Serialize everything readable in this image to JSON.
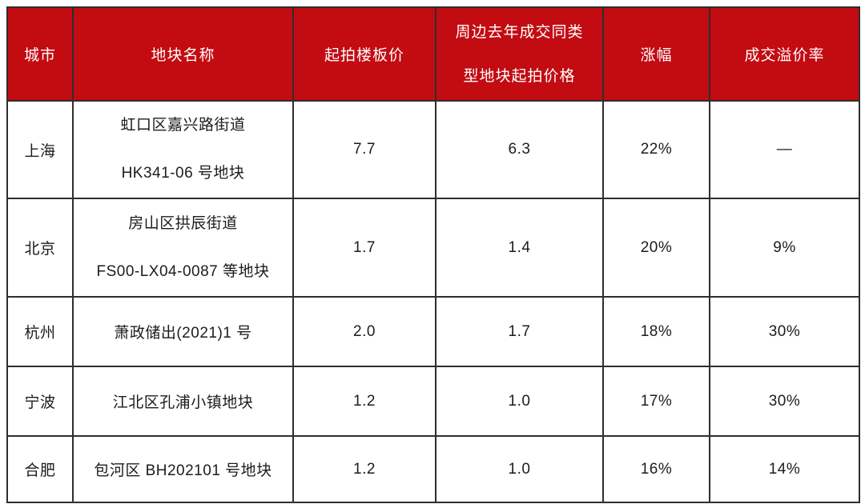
{
  "colors": {
    "header_bg": "#c30b12",
    "header_text": "#ffffff",
    "body_text": "#1c1c1c",
    "border": "#2e2e2e"
  },
  "table": {
    "headers": [
      {
        "lines": [
          "城市"
        ]
      },
      {
        "lines": [
          "地块名称"
        ]
      },
      {
        "lines": [
          "起拍楼板价"
        ]
      },
      {
        "lines": [
          "周边去年成交同类",
          "型地块起拍价格"
        ]
      },
      {
        "lines": [
          "涨幅"
        ]
      },
      {
        "lines": [
          "成交溢价率"
        ]
      }
    ],
    "rows": [
      {
        "city": "上海",
        "name": [
          "虹口区嘉兴路街道",
          "HK341-06 号地块"
        ],
        "start_price": "7.7",
        "nearby_price": "6.3",
        "increase": "22%",
        "premium": "—"
      },
      {
        "city": "北京",
        "name": [
          "房山区拱辰街道",
          "FS00-LX04-0087 等地块"
        ],
        "start_price": "1.7",
        "nearby_price": "1.4",
        "increase": "20%",
        "premium": "9%"
      },
      {
        "city": "杭州",
        "name": [
          "萧政储出(2021)1 号"
        ],
        "start_price": "2.0",
        "nearby_price": "1.7",
        "increase": "18%",
        "premium": "30%"
      },
      {
        "city": "宁波",
        "name": [
          "江北区孔浦小镇地块"
        ],
        "start_price": "1.2",
        "nearby_price": "1.0",
        "increase": "17%",
        "premium": "30%"
      },
      {
        "city": "合肥",
        "name": [
          "包河区 BH202101 号地块"
        ],
        "start_price": "1.2",
        "nearby_price": "1.0",
        "increase": "16%",
        "premium": "14%"
      }
    ]
  },
  "chart_data": {
    "type": "table",
    "columns": [
      "城市",
      "地块名称",
      "起拍楼板价",
      "周边去年成交同类型地块起拍价格",
      "涨幅",
      "成交溢价率"
    ],
    "rows": [
      [
        "上海",
        "虹口区嘉兴路街道 HK341-06 号地块",
        7.7,
        6.3,
        "22%",
        "—"
      ],
      [
        "北京",
        "房山区拱辰街道 FS00-LX04-0087 等地块",
        1.7,
        1.4,
        "20%",
        "9%"
      ],
      [
        "杭州",
        "萧政储出(2021)1 号",
        2.0,
        1.7,
        "18%",
        "30%"
      ],
      [
        "宁波",
        "江北区孔浦小镇地块",
        1.2,
        1.0,
        "17%",
        "30%"
      ],
      [
        "合肥",
        "包河区 BH202101 号地块",
        1.2,
        1.0,
        "16%",
        "14%"
      ]
    ]
  }
}
